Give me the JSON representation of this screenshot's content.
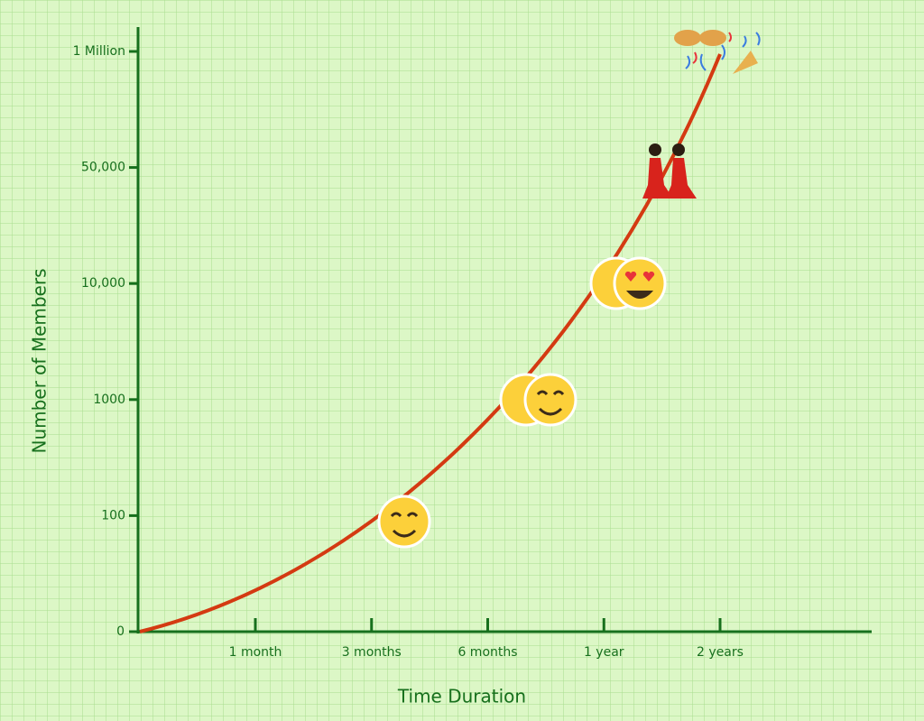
{
  "y_axis": {
    "title": "Number of Members",
    "ticks": [
      "0",
      "100",
      "1000",
      "10,000",
      "50,000",
      "1 Million"
    ]
  },
  "x_axis": {
    "title": "Time Duration",
    "ticks": [
      "1 month",
      "3 months",
      "6 months",
      "1 year",
      "2 years"
    ]
  }
}
